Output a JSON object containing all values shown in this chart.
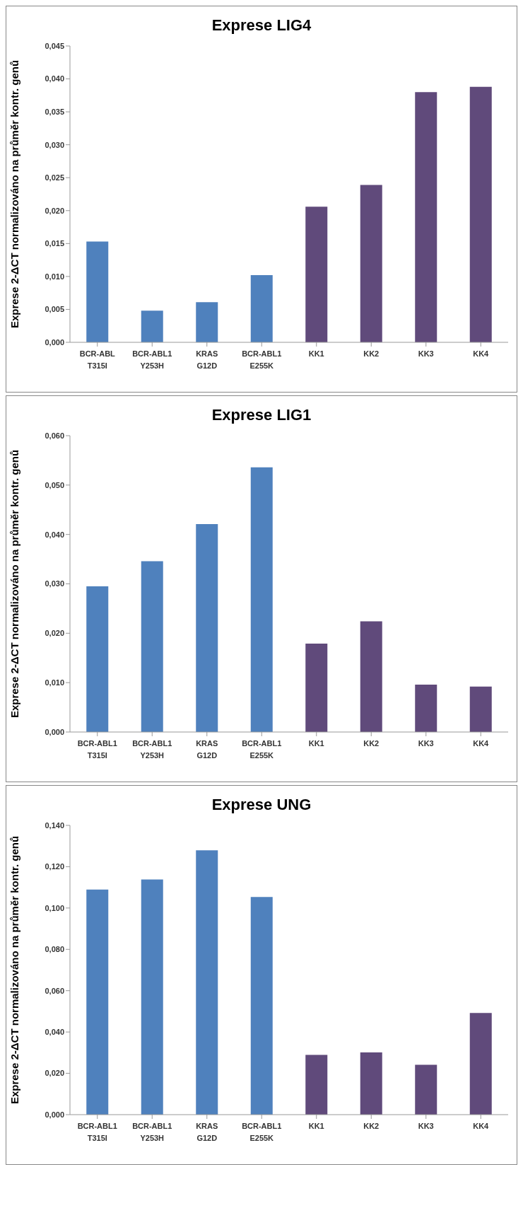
{
  "chart_data": [
    {
      "type": "bar",
      "title": "Exprese LIG4",
      "ylabel": "Exprese 2-ΔCT normalizováno na průměr kontr. genů",
      "categories": [
        "BCR-ABL\nT315I",
        "BCR-ABL1\nY253H",
        "KRAS\nG12D",
        "BCR-ABL1\nE255K",
        "KK1",
        "KK2",
        "KK3",
        "KK4"
      ],
      "values": [
        0.0153,
        0.0048,
        0.0061,
        0.0102,
        0.0206,
        0.0239,
        0.038,
        0.0388
      ],
      "colors": [
        "#4f81bd",
        "#4f81bd",
        "#4f81bd",
        "#4f81bd",
        "#604a7b",
        "#604a7b",
        "#604a7b",
        "#604a7b"
      ],
      "ylim": [
        0,
        0.045
      ],
      "yticks": [
        {
          "value": 0,
          "label": "0,000"
        },
        {
          "value": 0.005,
          "label": "0,005"
        },
        {
          "value": 0.01,
          "label": "0,010"
        },
        {
          "value": 0.015,
          "label": "0,015"
        },
        {
          "value": 0.02,
          "label": "0,020"
        },
        {
          "value": 0.025,
          "label": "0,025"
        },
        {
          "value": 0.03,
          "label": "0,030"
        },
        {
          "value": 0.035,
          "label": "0,035"
        },
        {
          "value": 0.04,
          "label": "0,040"
        },
        {
          "value": 0.045,
          "label": "0,045"
        }
      ],
      "grid": false,
      "legend": false
    },
    {
      "type": "bar",
      "title": "Exprese LIG1",
      "ylabel": "Exprese 2-ΔCT normalizováno na průměr kontr. genů",
      "categories": [
        "BCR-ABL1\nT315I",
        "BCR-ABL1\nY253H",
        "KRAS\nG12D",
        "BCR-ABL1\nE255K",
        "KK1",
        "KK2",
        "KK3",
        "KK4"
      ],
      "values": [
        0.0295,
        0.0346,
        0.0421,
        0.0536,
        0.0179,
        0.0224,
        0.0096,
        0.0092
      ],
      "colors": [
        "#4f81bd",
        "#4f81bd",
        "#4f81bd",
        "#4f81bd",
        "#604a7b",
        "#604a7b",
        "#604a7b",
        "#604a7b"
      ],
      "ylim": [
        0,
        0.06
      ],
      "yticks": [
        {
          "value": 0,
          "label": "0,000"
        },
        {
          "value": 0.01,
          "label": "0,010"
        },
        {
          "value": 0.02,
          "label": "0,020"
        },
        {
          "value": 0.03,
          "label": "0,030"
        },
        {
          "value": 0.04,
          "label": "0,040"
        },
        {
          "value": 0.05,
          "label": "0,050"
        },
        {
          "value": 0.06,
          "label": "0,060"
        }
      ],
      "grid": false,
      "legend": false
    },
    {
      "type": "bar",
      "title": "Exprese UNG",
      "ylabel": "Exprese 2-ΔCT normalizováno na průměr kontr. genů",
      "categories": [
        "BCR-ABL1\nT315I",
        "BCR-ABL1\nY253H",
        "KRAS\nG12D",
        "BCR-ABL1\nE255K",
        "KK1",
        "KK2",
        "KK3",
        "KK4"
      ],
      "values": [
        0.1089,
        0.1138,
        0.1279,
        0.1053,
        0.0289,
        0.0301,
        0.0241,
        0.0492
      ],
      "colors": [
        "#4f81bd",
        "#4f81bd",
        "#4f81bd",
        "#4f81bd",
        "#604a7b",
        "#604a7b",
        "#604a7b",
        "#604a7b"
      ],
      "ylim": [
        0,
        0.14
      ],
      "yticks": [
        {
          "value": 0,
          "label": "0,000"
        },
        {
          "value": 0.02,
          "label": "0,020"
        },
        {
          "value": 0.04,
          "label": "0,040"
        },
        {
          "value": 0.06,
          "label": "0,060"
        },
        {
          "value": 0.08,
          "label": "0,080"
        },
        {
          "value": 0.1,
          "label": "0,100"
        },
        {
          "value": 0.12,
          "label": "0,120"
        },
        {
          "value": 0.14,
          "label": "0,140"
        }
      ],
      "grid": false,
      "legend": false
    }
  ]
}
